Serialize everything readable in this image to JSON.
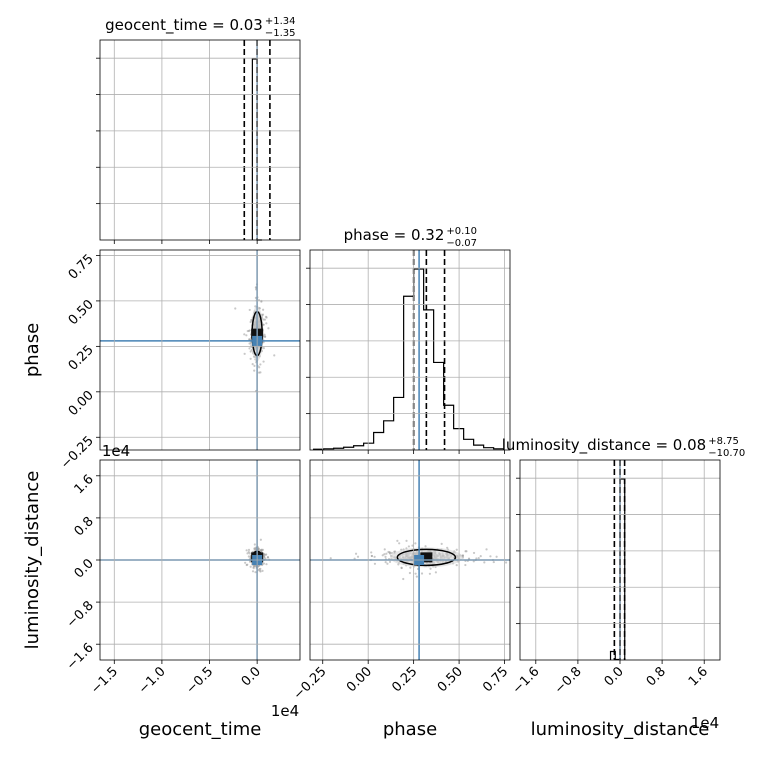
{
  "chart_data": {
    "type": "corner",
    "parameters": [
      {
        "key": "geocent_time",
        "label": "geocent_time",
        "range": [
          -16500,
          4500
        ],
        "ticks": [
          -15000,
          -10000,
          -5000,
          0
        ],
        "tick_labels": [
          "−1.5",
          "−1.0",
          "−0.5",
          "0.0"
        ],
        "offset_text": "1e4",
        "truth": 0,
        "title_main": "geocent_time = 0.03",
        "title_plus": "+1.34",
        "title_minus": "−1.35",
        "quantiles": [
          -1350,
          0,
          1340
        ],
        "hist": {
          "edges": [
            -500,
            0,
            500
          ],
          "counts": [
            1,
            0
          ]
        }
      },
      {
        "key": "phase",
        "label": "phase",
        "range": [
          -0.32,
          0.78
        ],
        "ticks": [
          -0.25,
          0,
          0.25,
          0.5,
          0.75
        ],
        "tick_labels": [
          "−0.25",
          "0.00",
          "0.25",
          "0.50",
          "0.75"
        ],
        "offset_text": "",
        "truth": 0.28,
        "title_main": "phase = 0.32",
        "title_plus": "+0.10",
        "title_minus": "−0.07",
        "quantiles": [
          0.25,
          0.32,
          0.42
        ],
        "hist": {
          "edges": [
            -0.3,
            -0.245,
            -0.19,
            -0.135,
            -0.08,
            -0.025,
            0.03,
            0.085,
            0.14,
            0.195,
            0.25,
            0.305,
            0.36,
            0.415,
            0.47,
            0.525,
            0.58,
            0.635,
            0.69,
            0.745
          ],
          "counts": [
            0.004,
            0.006,
            0.009,
            0.014,
            0.022,
            0.035,
            0.09,
            0.15,
            0.27,
            0.79,
            0.93,
            0.72,
            0.45,
            0.23,
            0.11,
            0.055,
            0.025,
            0.012,
            0.006
          ]
        }
      },
      {
        "key": "luminosity_distance",
        "label": "luminosity_distance",
        "range": [
          -19000,
          19000
        ],
        "ticks": [
          -16000,
          -8000,
          0,
          8000,
          16000
        ],
        "tick_labels": [
          "−1.6",
          "−0.8",
          "0.0",
          "0.8",
          "1.6"
        ],
        "offset_text": "1e4",
        "truth": 0,
        "title_main": "luminosity_distance = 0.08",
        "title_plus": "+8.75",
        "title_minus": "−10.70",
        "quantiles": [
          -1070,
          8,
          875
        ],
        "hist": {
          "edges": [
            -1800,
            -900,
            0,
            900
          ],
          "counts": [
            0.045,
            0.003,
            0.96
          ]
        }
      }
    ],
    "truth_color": "#4682b4",
    "hist_color": "#000000",
    "grid": true,
    "pairs": [
      {
        "row": 1,
        "col": 0,
        "center": [
          0,
          0.32
        ],
        "spread": [
          300,
          0.06
        ]
      },
      {
        "row": 2,
        "col": 0,
        "center": [
          0,
          500
        ],
        "spread": [
          300,
          700
        ]
      },
      {
        "row": 2,
        "col": 1,
        "center": [
          0.32,
          500
        ],
        "spread": [
          0.1,
          700
        ]
      }
    ]
  }
}
